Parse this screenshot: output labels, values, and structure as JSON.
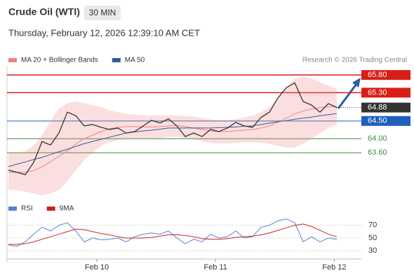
{
  "chart_data": [
    {
      "type": "line",
      "title": "Crude Oil (WTI)",
      "timeframe": "30 MIN",
      "subtitle": "Thursday, February 12, 2026 12:39:10 AM CET",
      "credit": "Research © 2026 Trading Central",
      "categories": [
        null,
        null,
        null,
        null,
        null,
        null,
        null,
        null,
        null,
        null,
        null,
        null,
        null,
        null,
        null,
        null,
        null,
        null,
        null,
        null,
        null,
        null,
        null,
        null,
        null,
        null,
        null,
        null,
        null,
        null,
        null,
        null,
        null,
        null,
        null,
        null,
        null,
        null,
        null,
        null
      ],
      "values": [
        63.11,
        63.05,
        62.98,
        63.33,
        63.92,
        63.82,
        64.16,
        64.75,
        64.65,
        64.36,
        64.4,
        64.32,
        64.26,
        64.3,
        64.16,
        64.2,
        64.36,
        64.52,
        64.44,
        64.56,
        64.36,
        64.06,
        64.16,
        64.06,
        64.26,
        64.2,
        64.3,
        64.46,
        64.36,
        64.32,
        64.6,
        64.75,
        65.15,
        65.44,
        65.58,
        65.05,
        64.95,
        64.75,
        64.99,
        64.88
      ],
      "color": "#333333",
      "series": [
        {
          "name": "MA 20 + Bollinger Bands",
          "color": "#f08080",
          "values": [
            63.05,
            63.05,
            63.05,
            63.1,
            63.2,
            63.35,
            63.5,
            63.65,
            63.85,
            64.0,
            64.1,
            64.2,
            64.28,
            64.32,
            64.34,
            64.34,
            64.33,
            64.33,
            64.34,
            64.36,
            64.37,
            64.34,
            64.3,
            64.26,
            64.22,
            64.2,
            64.2,
            64.22,
            64.24,
            64.26,
            64.3,
            64.36,
            64.46,
            64.58,
            64.7,
            64.78,
            64.84,
            64.88,
            64.9,
            64.9
          ],
          "upper": [
            63.6,
            63.6,
            63.65,
            63.8,
            64.1,
            64.5,
            64.85,
            65.0,
            65.05,
            65.0,
            64.95,
            64.9,
            64.8,
            64.75,
            64.7,
            64.68,
            64.66,
            64.66,
            64.66,
            64.66,
            64.66,
            64.64,
            64.62,
            64.58,
            64.55,
            64.52,
            64.52,
            64.55,
            64.6,
            64.65,
            64.75,
            64.9,
            65.15,
            65.45,
            65.7,
            65.75,
            65.7,
            65.6,
            65.5,
            65.4
          ],
          "lower": [
            62.55,
            62.55,
            62.5,
            62.45,
            62.4,
            62.45,
            62.55,
            62.8,
            63.1,
            63.4,
            63.6,
            63.8,
            63.9,
            63.95,
            64.0,
            64.0,
            64.0,
            64.0,
            64.02,
            64.05,
            64.05,
            64.02,
            63.98,
            63.92,
            63.88,
            63.86,
            63.86,
            63.88,
            63.9,
            63.9,
            63.88,
            63.85,
            63.8,
            63.75,
            63.75,
            63.85,
            64.0,
            64.15,
            64.3,
            64.4
          ]
        },
        {
          "name": "MA 50",
          "color": "#2e5c9a",
          "values": [
            63.21,
            63.28,
            63.34,
            63.41,
            63.47,
            63.55,
            63.63,
            63.7,
            63.78,
            63.86,
            63.92,
            63.98,
            64.04,
            64.1,
            64.16,
            64.19,
            64.22,
            64.24,
            64.27,
            64.3,
            64.3,
            64.3,
            64.3,
            64.3,
            64.3,
            64.31,
            64.32,
            64.33,
            64.35,
            64.36,
            64.4,
            64.44,
            64.48,
            64.51,
            64.55,
            64.58,
            64.61,
            64.65,
            64.68,
            64.71
          ]
        }
      ],
      "ylim": [
        62.28,
        66.04
      ],
      "levels": [
        {
          "value": 65.8,
          "label": "65.80",
          "color": "#d91e18",
          "box": true,
          "line": "solid"
        },
        {
          "value": 65.3,
          "label": "65.30",
          "color": "#d91e18",
          "box": true,
          "line": "solid"
        },
        {
          "value": 64.88,
          "label": "64.88",
          "color": "#333333",
          "box": true,
          "line": "dotted"
        },
        {
          "value": 64.5,
          "label": "64.50",
          "color": "#1f5fbf",
          "box": true,
          "line": "solid"
        },
        {
          "value": 64.0,
          "label": "64.00",
          "color": "#3a8a3a",
          "box": false,
          "line": "solid"
        },
        {
          "value": 63.6,
          "label": "63.60",
          "color": "#3a8a3a",
          "box": false,
          "line": "solid"
        }
      ],
      "xticks": [
        {
          "value": 10.5,
          "label": "Feb 10"
        },
        {
          "value": 24.6,
          "label": "Feb 11"
        },
        {
          "value": 38.7,
          "label": "Feb 12"
        }
      ]
    },
    {
      "type": "line",
      "series": [
        {
          "name": "RSI",
          "color": "#5b7fd6",
          "values": [
            39,
            37,
            44,
            56,
            67,
            61,
            70,
            74,
            61,
            44,
            50,
            47,
            48,
            50,
            44,
            52,
            56,
            58,
            56,
            61,
            50,
            41,
            48,
            44,
            56,
            50,
            52,
            61,
            50,
            52,
            67,
            70,
            77,
            80,
            74,
            44,
            52,
            44,
            50,
            48
          ]
        },
        {
          "name": "9MA",
          "color": "#cc2222",
          "values": [
            40,
            40,
            41,
            44,
            48,
            52,
            56,
            60,
            64,
            63,
            60,
            57,
            55,
            52,
            50,
            50,
            50,
            51,
            53,
            55,
            55,
            54,
            52,
            49,
            48,
            48,
            49,
            51,
            52,
            53,
            55,
            58,
            62,
            66,
            70,
            72,
            68,
            62,
            56,
            52
          ]
        }
      ],
      "ylim": [
        17,
        83
      ],
      "yticks": [
        30,
        50,
        70
      ],
      "grid": true
    }
  ]
}
